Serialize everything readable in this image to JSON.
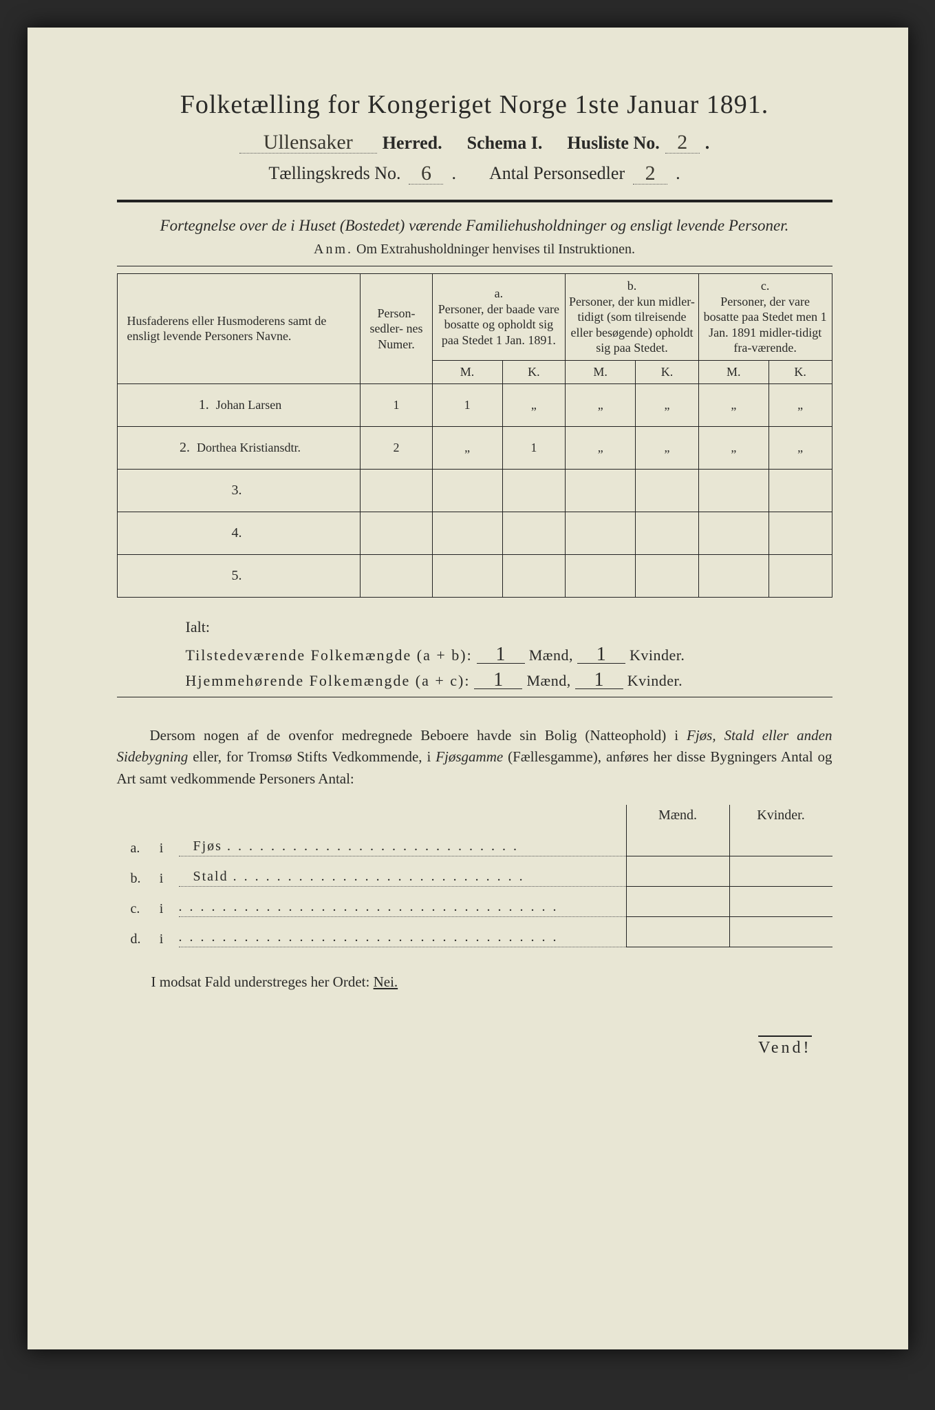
{
  "title": "Folketælling for Kongeriget Norge 1ste Januar 1891.",
  "header": {
    "herred_value": "Ullensaker",
    "herred_label": "Herred.",
    "schema_label": "Schema I.",
    "husliste_label": "Husliste No.",
    "husliste_value": "2",
    "kreds_label": "Tællingskreds No.",
    "kreds_value": "6",
    "antal_label": "Antal Personsedler",
    "antal_value": "2"
  },
  "intro": {
    "italic": "Fortegnelse over de i Huset (Bostedet) værende Familiehusholdninger og ensligt levende Personer.",
    "anm_label": "Anm.",
    "anm_text": "Om Extrahusholdninger henvises til Instruktionen."
  },
  "table": {
    "head_name": "Husfaderens eller Husmoderens samt de ensligt levende Personers Navne.",
    "head_num": "Person-\nsedler-\nnes\nNumer.",
    "head_a_lbl": "a.",
    "head_a": "Personer, der baade vare bosatte og opholdt sig paa Stedet 1 Jan. 1891.",
    "head_b_lbl": "b.",
    "head_b": "Personer, der kun midler-tidigt (som tilreisende eller besøgende) opholdt sig paa Stedet.",
    "head_c_lbl": "c.",
    "head_c": "Personer, der vare bosatte paa Stedet men 1 Jan. 1891 midler-tidigt fra-værende.",
    "M": "M.",
    "K": "K.",
    "rows": [
      {
        "n": "1.",
        "name": "Johan Larsen",
        "num": "1",
        "aM": "1",
        "aK": "„",
        "bM": "„",
        "bK": "„",
        "cM": "„",
        "cK": "„"
      },
      {
        "n": "2.",
        "name": "Dorthea Kristiansdtr.",
        "num": "2",
        "aM": "„",
        "aK": "1",
        "bM": "„",
        "bK": "„",
        "cM": "„",
        "cK": "„"
      },
      {
        "n": "3.",
        "name": "",
        "num": "",
        "aM": "",
        "aK": "",
        "bM": "",
        "bK": "",
        "cM": "",
        "cK": ""
      },
      {
        "n": "4.",
        "name": "",
        "num": "",
        "aM": "",
        "aK": "",
        "bM": "",
        "bK": "",
        "cM": "",
        "cK": ""
      },
      {
        "n": "5.",
        "name": "",
        "num": "",
        "aM": "",
        "aK": "",
        "bM": "",
        "bK": "",
        "cM": "",
        "cK": ""
      }
    ]
  },
  "totals": {
    "ialt": "Ialt:",
    "row1_label": "Tilstedeværende Folkemængde (a + b):",
    "row2_label": "Hjemmehørende Folkemængde (a + c):",
    "maend": "Mænd,",
    "kvinder": "Kvinder.",
    "r1m": "1",
    "r1k": "1",
    "r2m": "1",
    "r2k": "1"
  },
  "para": "Dersom nogen af de ovenfor medregnede Beboere havde sin Bolig (Natteophold) i Fjøs, Stald eller anden Sidebygning eller, for Tromsø Stifts Vedkommende, i Fjøsgamme (Fællesgamme), anføres her disse Bygningers Antal og Art samt vedkommende Personers Antal:",
  "buildings": {
    "maend": "Mænd.",
    "kvinder": "Kvinder.",
    "rows": [
      {
        "l": "a.",
        "i": "i",
        "name": "Fjøs"
      },
      {
        "l": "b.",
        "i": "i",
        "name": "Stald"
      },
      {
        "l": "c.",
        "i": "i",
        "name": ""
      },
      {
        "l": "d.",
        "i": "i",
        "name": ""
      }
    ]
  },
  "nei": {
    "text": "I modsat Fald understreges her Ordet:",
    "word": "Nei."
  },
  "vend": "Vend!",
  "colors": {
    "paper": "#e8e6d4",
    "ink": "#2a2a28",
    "background": "#2a2a2a"
  }
}
